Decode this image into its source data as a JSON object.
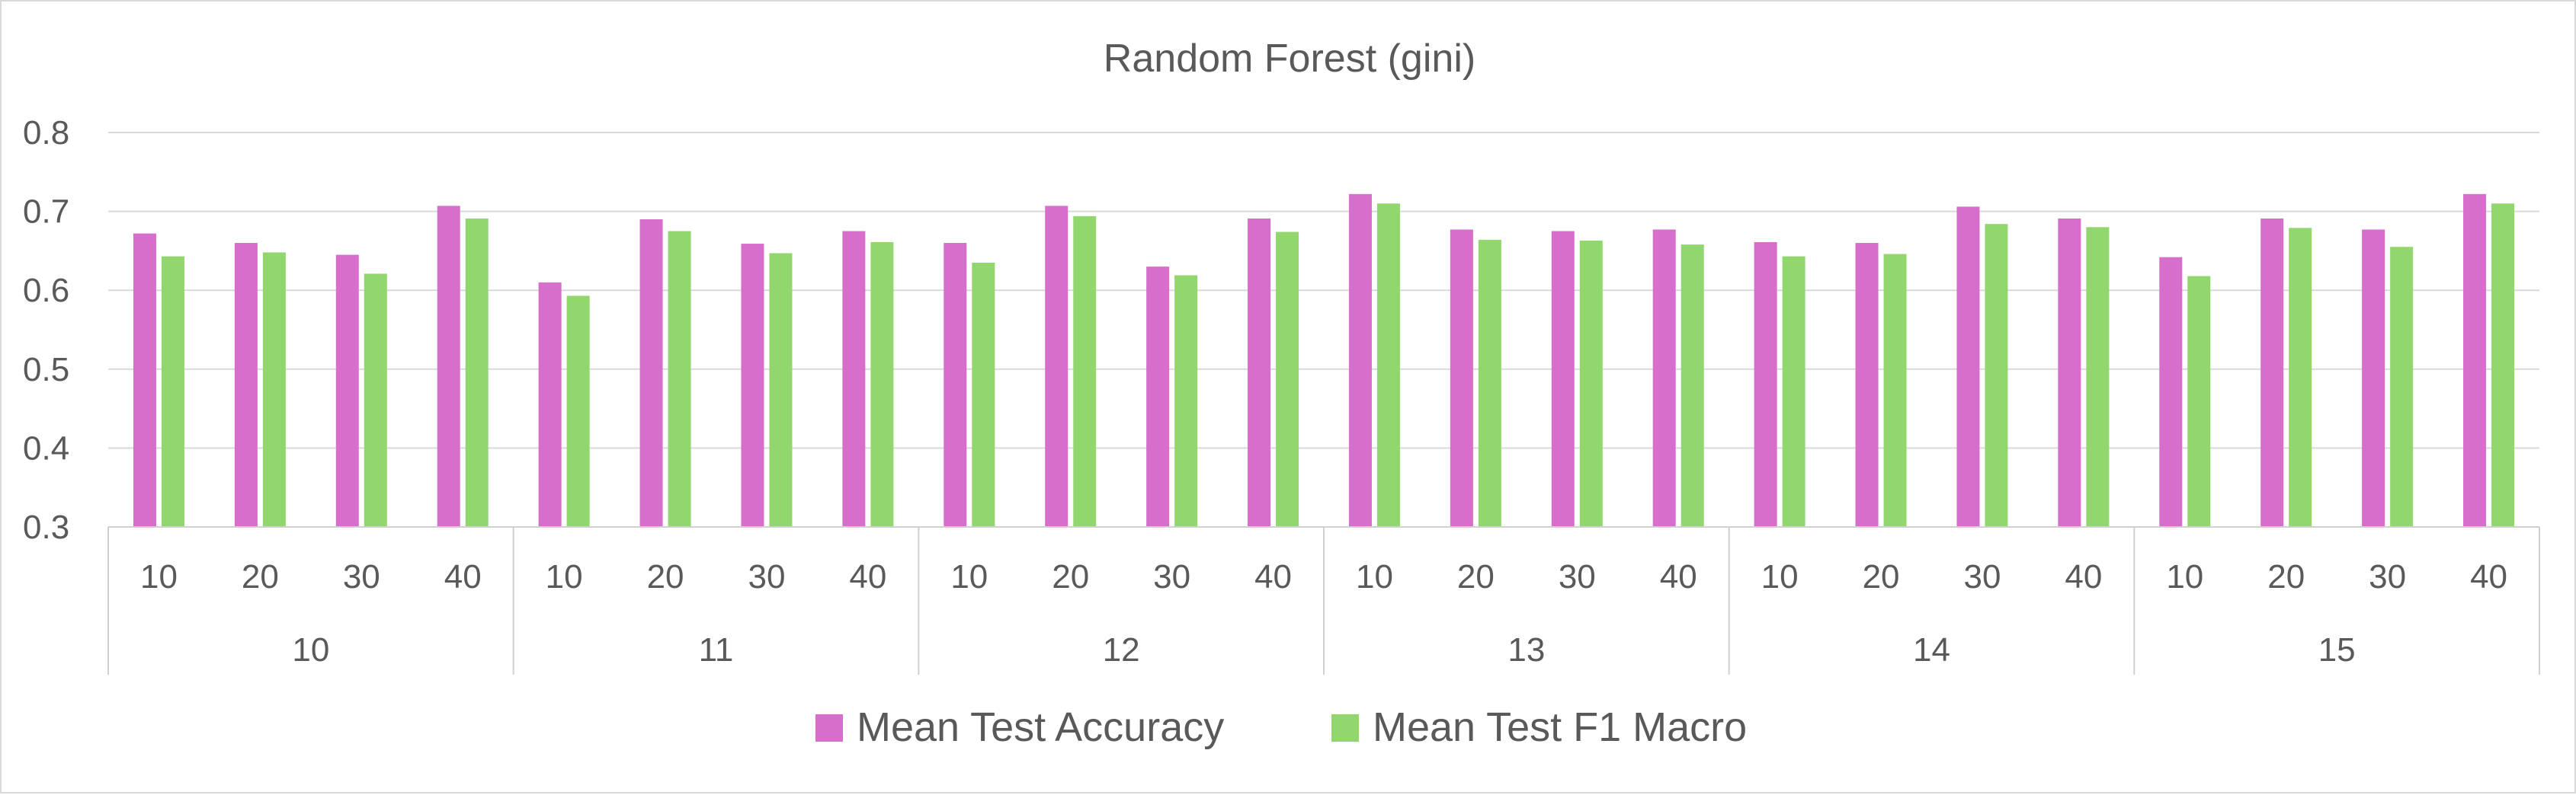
{
  "chart_data": {
    "type": "bar",
    "title": "Random Forest (gini)",
    "xlabel": "",
    "ylabel": "",
    "ylim": [
      0.3,
      0.8
    ],
    "y_ticks": [
      "0.3",
      "0.4",
      "0.5",
      "0.6",
      "0.7",
      "0.8"
    ],
    "grid": true,
    "legend_position": "bottom",
    "groups": [
      {
        "label": "10",
        "categories": [
          "10",
          "20",
          "30",
          "40"
        ]
      },
      {
        "label": "11",
        "categories": [
          "10",
          "20",
          "30",
          "40"
        ]
      },
      {
        "label": "12",
        "categories": [
          "10",
          "20",
          "30",
          "40"
        ]
      },
      {
        "label": "13",
        "categories": [
          "10",
          "20",
          "30",
          "40"
        ]
      },
      {
        "label": "14",
        "categories": [
          "10",
          "20",
          "30",
          "40"
        ]
      },
      {
        "label": "15",
        "categories": [
          "10",
          "20",
          "30",
          "40"
        ]
      }
    ],
    "series": [
      {
        "name": "Mean Test Accuracy",
        "color": "#d86ecc",
        "values": [
          0.672,
          0.66,
          0.645,
          0.707,
          0.61,
          0.69,
          0.659,
          0.675,
          0.66,
          0.707,
          0.63,
          0.691,
          0.722,
          0.677,
          0.675,
          0.677,
          0.661,
          0.66,
          0.706,
          0.691,
          0.642,
          0.691,
          0.677,
          0.722
        ]
      },
      {
        "name": "Mean Test F1 Macro",
        "color": "#92d66e",
        "values": [
          0.643,
          0.648,
          0.621,
          0.691,
          0.593,
          0.675,
          0.647,
          0.661,
          0.635,
          0.694,
          0.619,
          0.674,
          0.71,
          0.664,
          0.663,
          0.658,
          0.643,
          0.646,
          0.684,
          0.68,
          0.618,
          0.679,
          0.655,
          0.71
        ]
      }
    ]
  }
}
